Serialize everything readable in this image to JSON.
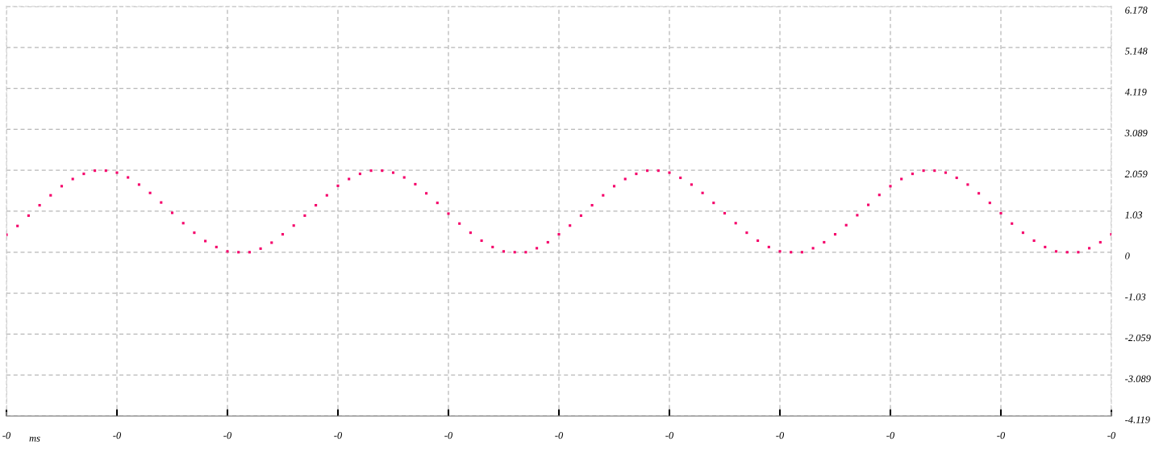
{
  "chart_data": {
    "type": "scatter",
    "xlabel": "ms",
    "categories": [
      "-0",
      null,
      null,
      null,
      null,
      null,
      null,
      null,
      null,
      null,
      "-0",
      null,
      null,
      null,
      null,
      null,
      null,
      null,
      null,
      null,
      "-0",
      null,
      null,
      null,
      null,
      null,
      null,
      null,
      null,
      null,
      "-0",
      null,
      null,
      null,
      null,
      null,
      null,
      null,
      null,
      null,
      "-0",
      null,
      null,
      null,
      null,
      null,
      null,
      null,
      null,
      null,
      "-0",
      null,
      null,
      null,
      null,
      null,
      null,
      null,
      null,
      null,
      "-0",
      null,
      null,
      null,
      null,
      null,
      null,
      null,
      null,
      null,
      "-0",
      null,
      null,
      null,
      null,
      null,
      null,
      null,
      null,
      null,
      "-0",
      null,
      null,
      null,
      null,
      null,
      null,
      null,
      null,
      null,
      "-0",
      null,
      null,
      null,
      null,
      null,
      null,
      null,
      null,
      null,
      "-0"
    ],
    "series": [
      {
        "color": "#f5006a",
        "values": [
          0.44,
          0.66,
          0.92,
          1.18,
          1.43,
          1.66,
          1.84,
          1.97,
          2.05,
          2.05,
          2.0,
          1.88,
          1.7,
          1.49,
          1.25,
          0.99,
          0.73,
          0.49,
          0.28,
          0.13,
          0.02,
          0.0,
          0.0,
          0.09,
          0.24,
          0.45,
          0.67,
          0.92,
          1.18,
          1.43,
          1.67,
          1.84,
          1.97,
          2.05,
          2.05,
          2.0,
          1.88,
          1.71,
          1.48,
          1.24,
          0.97,
          0.72,
          0.49,
          0.29,
          0.13,
          0.02,
          0.0,
          0.0,
          0.1,
          0.25,
          0.45,
          0.67,
          0.92,
          1.18,
          1.43,
          1.66,
          1.84,
          1.97,
          2.05,
          2.05,
          2.0,
          1.87,
          1.7,
          1.49,
          1.24,
          0.98,
          0.73,
          0.49,
          0.29,
          0.13,
          0.02,
          0.0,
          0.0,
          0.1,
          0.25,
          0.45,
          0.68,
          0.93,
          1.19,
          1.44,
          1.66,
          1.84,
          1.97,
          2.05,
          2.05,
          2.0,
          1.87,
          1.7,
          1.48,
          1.24,
          0.98,
          0.72,
          0.49,
          0.29,
          0.13,
          0.02,
          0.0,
          0.0,
          0.1,
          0.25,
          0.45
        ]
      }
    ],
    "ylim": [
      -4.119,
      6.178
    ],
    "yticks": [
      -4.119,
      -3.089,
      -2.059,
      -1.03,
      0,
      1.03,
      2.059,
      3.089,
      4.119,
      5.148,
      6.178
    ],
    "grid": true,
    "marker": "square"
  }
}
